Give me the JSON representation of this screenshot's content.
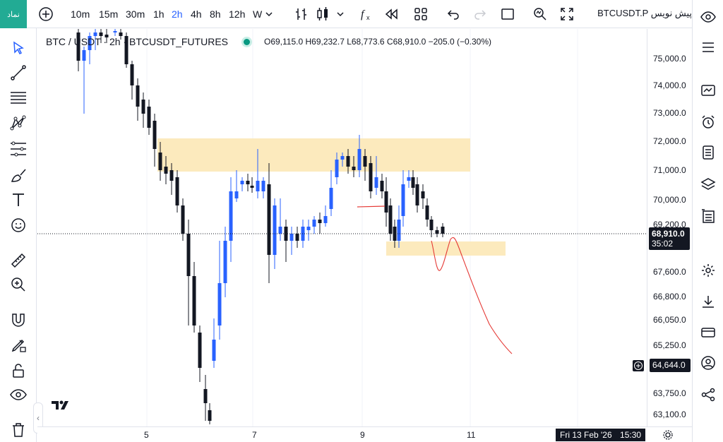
{
  "symbol_tab": "نماد",
  "toolbar": {
    "intervals": [
      "10m",
      "15m",
      "30m",
      "1h",
      "2h",
      "4h",
      "8h",
      "12h",
      "W"
    ],
    "active_interval": "2h",
    "symbol_name": "BTCUSDT.P پیش نویس"
  },
  "legend": {
    "symbol": "BTC / USDT · 2h · BTCUSDT_FUTURES",
    "ohlc": "O69,115.0 H69,232.7 L68,773.6 C68,910.0 −205.0 (−0.30%)"
  },
  "price_axis": {
    "labels": [
      "75,000.0",
      "74,000.0",
      "73,000.0",
      "72,000.0",
      "71,000.0",
      "70,000.0",
      "69,200.0",
      "67,600.0",
      "66,800.0",
      "66,050.0",
      "65,250.0",
      "63,750.0",
      "63,100.0"
    ],
    "current_price": "68,910.0",
    "countdown": "35:02",
    "crosshair_price": "64,644.0"
  },
  "time_axis": {
    "labels": [
      "5",
      "7",
      "9",
      "11"
    ],
    "crosshair_time": "Fri 13 Feb '26",
    "crosshair_clock": "15:30"
  },
  "colors": {
    "up": "#2962ff",
    "down": "#131722",
    "zone": "#fce8b6",
    "accent": "#2962ff",
    "drawing": "#e53935"
  },
  "icons": {
    "left": [
      "cursor-icon",
      "trendline-icon",
      "fib-icon",
      "pattern-icon",
      "projection-icon",
      "brush-icon",
      "text-icon",
      "emoji-icon",
      "ruler-icon",
      "zoom-icon",
      "magnet-icon",
      "lock-drawing-icon",
      "unlock-icon",
      "eye-icon",
      "trash-icon"
    ],
    "right": [
      "watchlist-icon",
      "menu-icon",
      "chart-layout-icon",
      "alarm-icon",
      "notes-icon",
      "layers-icon",
      "object-tree-icon",
      "settings-icon",
      "download-icon",
      "card-icon",
      "account-icon",
      "share-icon"
    ]
  }
}
